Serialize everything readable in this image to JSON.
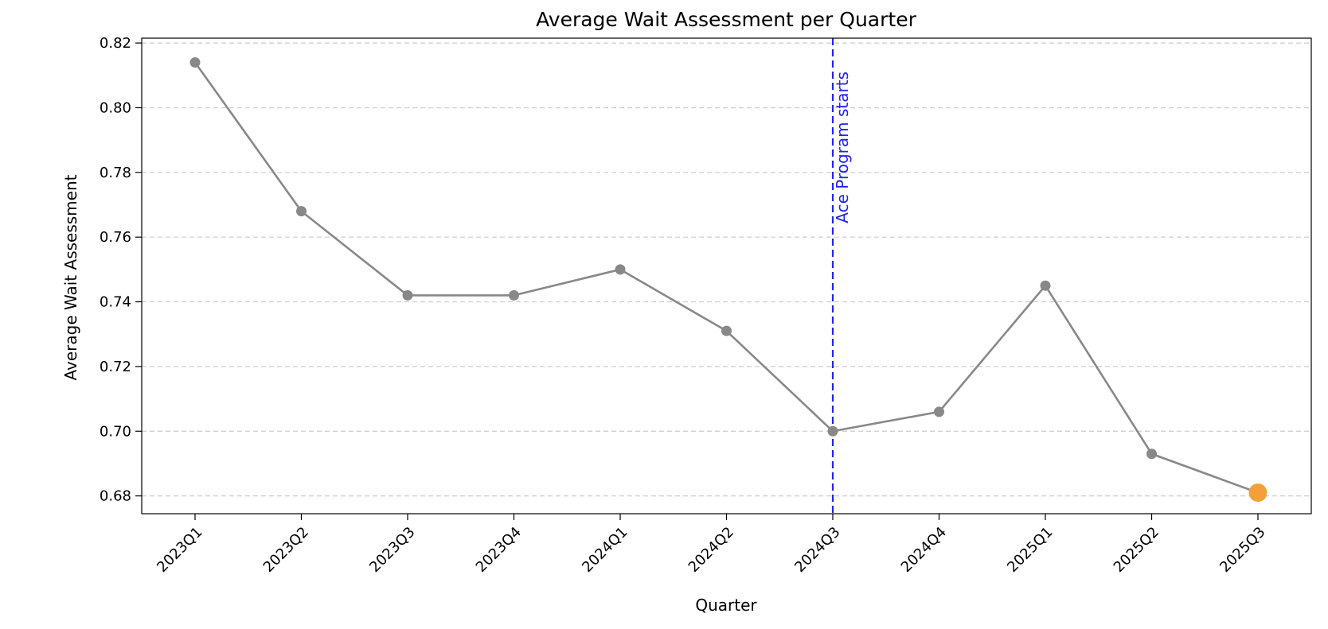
{
  "chart_data": {
    "type": "line",
    "title": "Average Wait Assessment per Quarter",
    "xlabel": "Quarter",
    "ylabel": "Average Wait Assessment",
    "categories": [
      "2023Q1",
      "2023Q2",
      "2023Q3",
      "2023Q4",
      "2024Q1",
      "2024Q2",
      "2024Q3",
      "2024Q4",
      "2025Q1",
      "2025Q2",
      "2025Q3"
    ],
    "series": [
      {
        "values": [
          0.814,
          0.768,
          0.742,
          0.742,
          0.75,
          0.731,
          0.7,
          0.706,
          0.745,
          0.693,
          0.681
        ],
        "color": "#888888"
      }
    ],
    "highlight": {
      "category": "2025Q3",
      "value": 0.681,
      "color": "#f4a03a"
    },
    "ylim": [
      0.6745,
      0.8215
    ],
    "yticks": [
      "0.68",
      "0.70",
      "0.72",
      "0.74",
      "0.76",
      "0.78",
      "0.80",
      "0.82"
    ],
    "grid": {
      "y": true,
      "x": false
    },
    "annotation": {
      "text": "Ace Program starts",
      "category": "2024Q3",
      "color": "#2222ee"
    }
  }
}
